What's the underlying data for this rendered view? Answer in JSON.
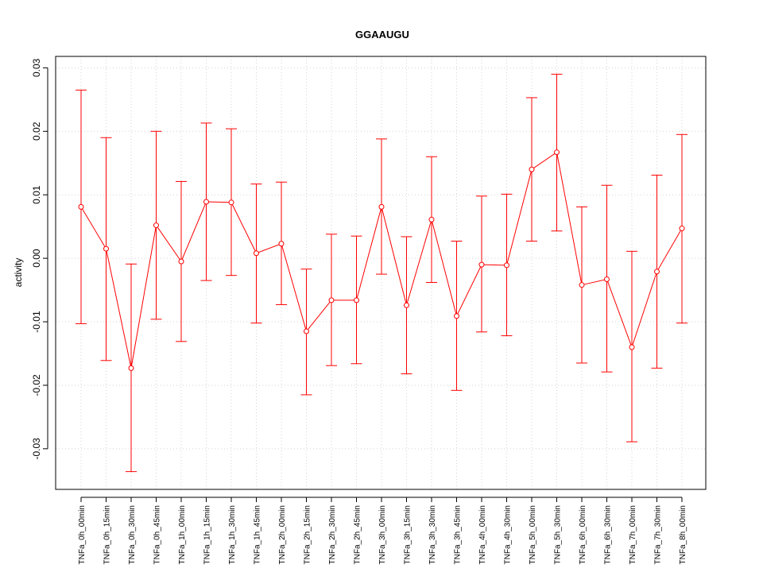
{
  "chart_data": {
    "type": "line",
    "title": "GGAAUGU",
    "xlabel": "",
    "ylabel": "activity",
    "categories": [
      "TNFa_0h_00min",
      "TNFa_0h_15min",
      "TNFa_0h_30min",
      "TNFa_0h_45min",
      "TNFa_1h_00min",
      "TNFa_1h_15min",
      "TNFa_1h_30min",
      "TNFa_1h_45min",
      "TNFa_2h_00min",
      "TNFa_2h_15min",
      "TNFa_2h_30min",
      "TNFa_2h_45min",
      "TNFa_3h_00min",
      "TNFa_3h_15min",
      "TNFa_3h_30min",
      "TNFa_3h_45min",
      "TNFa_4h_00min",
      "TNFa_4h_30min",
      "TNFa_5h_00min",
      "TNFa_5h_30min",
      "TNFa_6h_00min",
      "TNFa_6h_30min",
      "TNFa_7h_00min",
      "TNFa_7h_30min",
      "TNFa_8h_00min"
    ],
    "values": [
      0.0081,
      0.0015,
      -0.0173,
      0.0052,
      -0.0005,
      0.0089,
      0.0088,
      0.0008,
      0.0023,
      -0.0115,
      -0.0066,
      -0.0066,
      0.0081,
      -0.0074,
      0.0061,
      -0.0091,
      -0.001,
      -0.0011,
      0.014,
      0.0167,
      -0.0042,
      -0.0033,
      -0.014,
      -0.0021,
      0.0047
    ],
    "upper": [
      0.0265,
      0.019,
      -0.0009,
      0.02,
      0.0121,
      0.0213,
      0.0204,
      0.0117,
      0.012,
      -0.0017,
      0.0038,
      0.0035,
      0.0188,
      0.0034,
      0.016,
      0.0027,
      0.0098,
      0.0101,
      0.0253,
      0.029,
      0.0081,
      0.0115,
      0.0011,
      0.0131,
      0.0195
    ],
    "lower": [
      -0.0103,
      -0.0161,
      -0.0336,
      -0.0096,
      -0.0131,
      -0.0035,
      -0.0027,
      -0.0102,
      -0.0073,
      -0.0215,
      -0.0169,
      -0.0166,
      -0.0025,
      -0.0182,
      -0.0038,
      -0.0208,
      -0.0116,
      -0.0122,
      0.0027,
      0.0043,
      -0.0165,
      -0.0179,
      -0.0289,
      -0.0173,
      -0.0102
    ],
    "ylim": [
      -0.0364,
      0.0318
    ],
    "yticks": [
      -0.03,
      -0.02,
      -0.01,
      0.0,
      0.01,
      0.02,
      0.03
    ],
    "ytick_labels": [
      "-0.03",
      "-0.02",
      "-0.01",
      "0.00",
      "0.01",
      "0.02",
      "0.03"
    ],
    "grid": true,
    "series_color": "#ff0000",
    "grid_color": "#d3d3d3"
  }
}
